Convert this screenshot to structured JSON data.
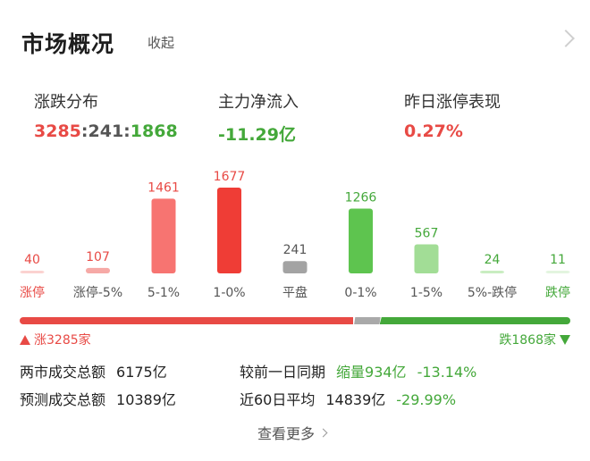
{
  "header": {
    "title": "市场概况",
    "collapse_label": "收起"
  },
  "stats": {
    "breadth": {
      "label": "涨跌分布",
      "up": "3285",
      "sep1": ":",
      "flat": "241",
      "sep2": ":",
      "down": "1868"
    },
    "net_inflow": {
      "label": "主力净流入",
      "value": "-11.29亿"
    },
    "limit_up_perf": {
      "label": "昨日涨停表现",
      "value": "0.27%"
    }
  },
  "chart_data": {
    "type": "bar",
    "categories": [
      "涨停",
      "涨停-5%",
      "5-1%",
      "1-0%",
      "平盘",
      "0-1%",
      "1-5%",
      "5%-跌停",
      "跌停"
    ],
    "values": [
      40,
      107,
      1461,
      1677,
      241,
      1266,
      567,
      24,
      11
    ],
    "value_labels": [
      "40",
      "107",
      "1461",
      "1677",
      "241",
      "1266",
      "567",
      "24",
      "11"
    ],
    "colors": [
      "#fbd2d0",
      "#f6a9a6",
      "#f77471",
      "#ef3d36",
      "#a3a3a3",
      "#5ec44f",
      "#a2dd96",
      "#c9edc1",
      "#e3f5df"
    ],
    "label_colors": [
      "#e84a45",
      "#e84a45",
      "#e84a45",
      "#e84a45",
      "#555555",
      "#44a83a",
      "#44a83a",
      "#44a83a",
      "#44a83a"
    ],
    "tick_colors": [
      "#e84a45",
      "#555555",
      "#555555",
      "#555555",
      "#555555",
      "#555555",
      "#555555",
      "#555555",
      "#44a83a"
    ],
    "ylim": [
      0,
      1677
    ]
  },
  "ratio": {
    "up": 3285,
    "flat": 241,
    "down": 1868
  },
  "counts": {
    "up_label": "涨3285家",
    "down_label": "跌1868家"
  },
  "turnover": {
    "total_label": "两市成交总额",
    "total_value": "6175亿",
    "forecast_label": "预测成交总额",
    "forecast_value": "10389亿",
    "prev_label": "较前一日同期",
    "prev_value": "缩量934亿",
    "prev_pct": "-13.14%",
    "avg_label": "近60日平均",
    "avg_value": "14839亿",
    "avg_pct": "-29.99%"
  },
  "more_label": "查看更多"
}
